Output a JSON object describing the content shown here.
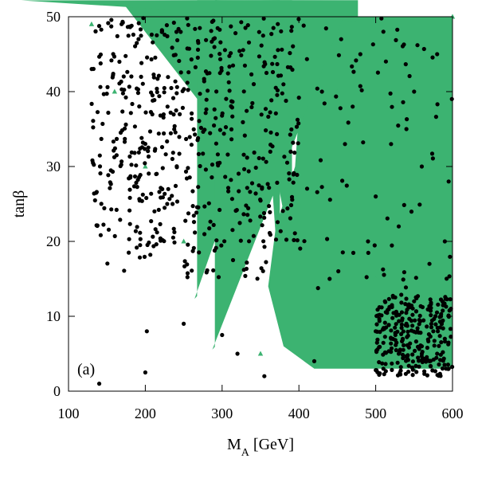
{
  "chart_data": {
    "type": "scatter",
    "panel_label": "(a)",
    "xlabel": {
      "main": "M",
      "sub": "A",
      "rest": " [GeV]"
    },
    "ylabel": "tanβ",
    "xlim": [
      100,
      600
    ],
    "ylim": [
      0,
      50
    ],
    "x_ticks": [
      100,
      200,
      300,
      400,
      500,
      600
    ],
    "y_ticks": [
      0,
      10,
      20,
      30,
      40,
      50
    ],
    "legend": "none",
    "grid": false,
    "colors": {
      "green": "#3cb371",
      "black": "#000000"
    },
    "series": [
      {
        "marker": "triangle",
        "color": "#3cb371",
        "regions": [
          {
            "x": [
              128,
              380
            ],
            "y": [
              30,
              50
            ]
          },
          {
            "x": [
              140,
              380
            ],
            "y": [
              20,
              30
            ]
          },
          {
            "x": [
              160,
              380
            ],
            "y": [
              15,
              20
            ]
          },
          {
            "x": [
              230,
              380
            ],
            "y": [
              10,
              15
            ]
          },
          {
            "x": [
              290,
              380
            ],
            "y": [
              4,
              10
            ]
          },
          {
            "x": [
              360,
              600
            ],
            "y": [
              3,
              20
            ]
          },
          {
            "x": [
              375,
              600
            ],
            "y": [
              20,
              50
            ]
          }
        ],
        "sample_points": [
          [
            130,
            49
          ],
          [
            160,
            40
          ],
          [
            200,
            30
          ],
          [
            250,
            20
          ],
          [
            300,
            10
          ],
          [
            350,
            5
          ],
          [
            400,
            25
          ],
          [
            450,
            40
          ],
          [
            500,
            15
          ],
          [
            550,
            3
          ],
          [
            600,
            50
          ]
        ]
      },
      {
        "marker": "circle",
        "color": "#000000",
        "points": [
          [
            140,
            1
          ],
          [
            202,
            8
          ],
          [
            200,
            2.5
          ],
          [
            250,
            9
          ],
          [
            300,
            7.5
          ],
          [
            320,
            5
          ],
          [
            355,
            2
          ],
          [
            420,
            4
          ],
          [
            430,
            40
          ],
          [
            440,
            15
          ],
          [
            455,
            47
          ],
          [
            460,
            33
          ],
          [
            470,
            38
          ],
          [
            480,
            45
          ],
          [
            490,
            20
          ],
          [
            500,
            26
          ],
          [
            510,
            48
          ],
          [
            520,
            33
          ],
          [
            530,
            22
          ],
          [
            540,
            35
          ],
          [
            550,
            40
          ],
          [
            560,
            30
          ],
          [
            570,
            17
          ],
          [
            580,
            45
          ],
          [
            590,
            20
          ],
          [
            595,
            28
          ],
          [
            550,
            12
          ],
          [
            560,
            6
          ],
          [
            570,
            4
          ],
          [
            575,
            8
          ],
          [
            580,
            5
          ],
          [
            585,
            10
          ],
          [
            590,
            7
          ],
          [
            595,
            3
          ],
          [
            598,
            11
          ],
          [
            540,
            9
          ],
          [
            530,
            5
          ],
          [
            520,
            7
          ],
          [
            510,
            3
          ],
          [
            500,
            8
          ]
        ]
      }
    ]
  }
}
